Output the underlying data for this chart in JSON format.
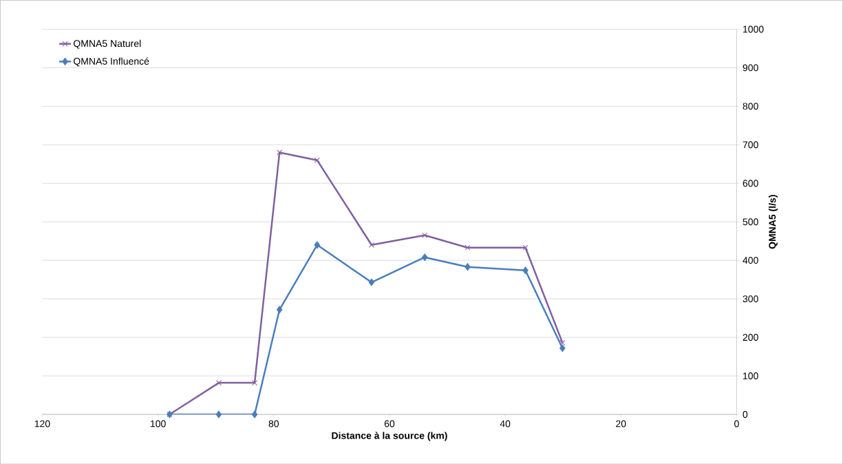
{
  "chart_data": {
    "type": "line",
    "xlabel": "Distance à la source (km)",
    "ylabel": "QMNA5  (l/s)",
    "xlim": [
      120,
      0
    ],
    "xticks": [
      120,
      100,
      80,
      60,
      40,
      20,
      0
    ],
    "ylim": [
      0,
      1000
    ],
    "yticks": [
      0,
      100,
      200,
      300,
      400,
      500,
      600,
      700,
      800,
      900,
      1000
    ],
    "grid": "y",
    "legend": "top left",
    "line_style": "solid",
    "series": [
      {
        "name": "QMNA5 Naturel",
        "color": "#7f5fa0",
        "marker": "cross",
        "x": [
          98.0,
          89.5,
          83.3,
          79.0,
          72.5,
          63.1,
          53.9,
          46.5,
          36.5,
          30.1
        ],
        "values": [
          0,
          82,
          82,
          680,
          660,
          440,
          465,
          433,
          433,
          186
        ]
      },
      {
        "name": "QMNA5 Influencé",
        "color": "#4a7ebb",
        "marker": "diamond",
        "x": [
          98.0,
          89.5,
          83.3,
          79.0,
          72.5,
          63.1,
          53.9,
          46.5,
          36.5,
          30.1
        ],
        "values": [
          0,
          0,
          0,
          272,
          440,
          343,
          408,
          383,
          374,
          172
        ]
      }
    ]
  }
}
